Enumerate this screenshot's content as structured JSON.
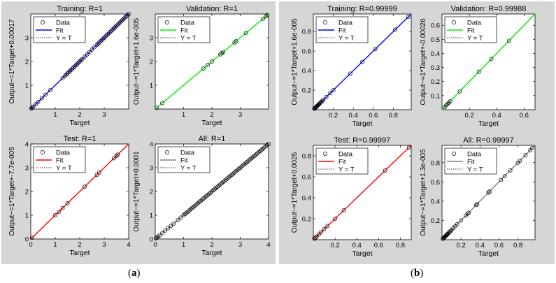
{
  "captions": {
    "a": "a",
    "b": "b"
  },
  "legend_labels": {
    "data": "Data",
    "fit": "Fit",
    "yt": "Y = T"
  },
  "chart_data": [
    {
      "type": "scatter",
      "id": "a-training",
      "title": "Training: R=1",
      "xlabel": "Target",
      "ylabel": "Output~=1*Target+0.00017",
      "xlim": [
        0,
        4
      ],
      "ylim": [
        0,
        4
      ],
      "xticks": [
        1,
        2,
        3
      ],
      "yticks": [
        1,
        2,
        3
      ],
      "fit_color": "#0000ff",
      "grid": false,
      "legend": "top-left",
      "x": [
        0.02,
        0.05,
        0.1,
        0.2,
        0.3,
        0.45,
        0.6,
        0.8,
        1.3,
        1.4,
        1.45,
        1.5,
        1.55,
        1.6,
        1.65,
        1.7,
        1.75,
        1.8,
        1.85,
        1.9,
        1.95,
        2.0,
        2.05,
        2.1,
        2.2,
        2.3,
        2.4,
        2.5,
        2.6,
        2.7,
        2.75,
        2.8,
        2.85,
        2.9,
        2.95,
        3.0,
        3.05,
        3.1,
        3.15,
        3.2,
        3.25,
        3.3,
        3.35,
        3.4,
        3.45,
        3.5,
        3.55,
        3.6,
        3.65,
        3.7,
        3.75,
        3.8,
        3.85,
        3.9,
        3.95,
        4.0
      ]
    },
    {
      "type": "scatter",
      "id": "a-validation",
      "title": "Validation: R=1",
      "xlabel": "Target",
      "ylabel": "Output~=1*Target+1.6e-005",
      "xlim": [
        0,
        4
      ],
      "ylim": [
        0,
        4
      ],
      "xticks": [
        1,
        2,
        3
      ],
      "yticks": [
        1,
        2,
        3
      ],
      "fit_color": "#00ee00",
      "grid": false,
      "legend": "top-left",
      "x": [
        0.05,
        0.25,
        1.7,
        1.85,
        2.0,
        2.3,
        2.35,
        2.4,
        2.8,
        2.85,
        3.2,
        3.8,
        3.9,
        3.95
      ]
    },
    {
      "type": "scatter",
      "id": "a-test",
      "title": "Test: R=1",
      "xlabel": "Target",
      "ylabel": "Output~=1*Target+-7.7e-005",
      "xlim": [
        0,
        4
      ],
      "ylim": [
        0,
        4
      ],
      "xticks": [
        0,
        1,
        2,
        3,
        4
      ],
      "yticks": [
        0,
        1,
        2,
        3,
        4
      ],
      "fit_color": "#ff0000",
      "grid": false,
      "legend": "top-left",
      "x": [
        0.05,
        1.0,
        1.15,
        1.3,
        1.5,
        2.2,
        2.7,
        2.8,
        3.4,
        3.5,
        3.55
      ]
    },
    {
      "type": "scatter",
      "id": "a-all",
      "title": "All: R=1",
      "xlabel": "Target",
      "ylabel": "Output~=1*Target+0.0001",
      "xlim": [
        0,
        4
      ],
      "ylim": [
        0,
        4
      ],
      "xticks": [
        0,
        1,
        2,
        3,
        4
      ],
      "yticks": [
        0,
        1,
        2,
        3,
        4
      ],
      "fit_color": "#808080",
      "grid": false,
      "legend": "top-left",
      "x": [
        0.02,
        0.05,
        0.1,
        0.15,
        0.25,
        0.35,
        0.45,
        0.55,
        0.65,
        0.8,
        0.9,
        1.0,
        1.05,
        1.1,
        1.15,
        1.2,
        1.25,
        1.3,
        1.35,
        1.4,
        1.45,
        1.5,
        1.55,
        1.6,
        1.65,
        1.7,
        1.75,
        1.8,
        1.85,
        1.9,
        1.95,
        2.0,
        2.05,
        2.1,
        2.15,
        2.2,
        2.25,
        2.3,
        2.35,
        2.4,
        2.45,
        2.5,
        2.55,
        2.6,
        2.65,
        2.7,
        2.75,
        2.8,
        2.85,
        2.9,
        2.95,
        3.0,
        3.05,
        3.1,
        3.15,
        3.2,
        3.25,
        3.3,
        3.35,
        3.4,
        3.45,
        3.5,
        3.55,
        3.6,
        3.65,
        3.7,
        3.75,
        3.8,
        3.85,
        3.9,
        3.95,
        4.0
      ]
    },
    {
      "type": "scatter",
      "id": "b-training",
      "title": "Training: R=0.99999",
      "xlabel": "Target",
      "ylabel": "Output~=1*Target+1.6e-005",
      "xlim": [
        0,
        0.98
      ],
      "ylim": [
        0,
        0.98
      ],
      "xticks": [
        0.2,
        0.4,
        0.6,
        0.8
      ],
      "yticks": [
        0.2,
        0.4,
        0.6,
        0.8
      ],
      "fit_color": "#0000ff",
      "grid": false,
      "legend": "top-left",
      "x": [
        0.01,
        0.015,
        0.02,
        0.025,
        0.03,
        0.035,
        0.04,
        0.045,
        0.05,
        0.055,
        0.06,
        0.07,
        0.08,
        0.09,
        0.1,
        0.13,
        0.17,
        0.2,
        0.37,
        0.49,
        0.62,
        0.82,
        0.95
      ]
    },
    {
      "type": "scatter",
      "id": "b-validation",
      "title": "Validation: R=0.99988",
      "xlabel": "Target",
      "ylabel": "Output~=1*Target+-0.00026",
      "xlim": [
        0,
        0.68
      ],
      "ylim": [
        0,
        0.68
      ],
      "xticks": [
        0.2,
        0.4,
        0.6
      ],
      "yticks": [
        0.1,
        0.2,
        0.3,
        0.4,
        0.5,
        0.6
      ],
      "fit_color": "#00ee00",
      "grid": false,
      "legend": "top-left",
      "x": [
        0.02,
        0.03,
        0.04,
        0.05,
        0.06,
        0.13,
        0.27,
        0.36,
        0.49
      ]
    },
    {
      "type": "scatter",
      "id": "b-test",
      "title": "Test: R=0.99997",
      "xlabel": "Target",
      "ylabel": "Output~=1*Target+0.0025",
      "xlim": [
        0,
        0.9
      ],
      "ylim": [
        0,
        0.9
      ],
      "xticks": [
        0.2,
        0.4,
        0.6,
        0.8
      ],
      "yticks": [
        0.2,
        0.4,
        0.6,
        0.8
      ],
      "fit_color": "#ff0000",
      "grid": false,
      "legend": "top-left",
      "x": [
        0.01,
        0.02,
        0.03,
        0.05,
        0.07,
        0.1,
        0.13,
        0.2,
        0.28,
        0.66,
        0.88
      ]
    },
    {
      "type": "scatter",
      "id": "b-all",
      "title": "All: R=0.99997",
      "xlabel": "Target",
      "ylabel": "Output~=1*Target+1.3e-005",
      "xlim": [
        0,
        0.98
      ],
      "ylim": [
        0,
        0.98
      ],
      "xticks": [
        0.2,
        0.4,
        0.6,
        0.8
      ],
      "yticks": [
        0.2,
        0.4,
        0.6,
        0.8
      ],
      "fit_color": "#808080",
      "grid": false,
      "legend": "top-left",
      "x": [
        0.01,
        0.015,
        0.02,
        0.025,
        0.03,
        0.035,
        0.04,
        0.045,
        0.05,
        0.055,
        0.06,
        0.07,
        0.08,
        0.09,
        0.1,
        0.12,
        0.14,
        0.16,
        0.2,
        0.25,
        0.27,
        0.28,
        0.36,
        0.37,
        0.49,
        0.5,
        0.62,
        0.66,
        0.72,
        0.8,
        0.82,
        0.88,
        0.93,
        0.95
      ]
    }
  ]
}
